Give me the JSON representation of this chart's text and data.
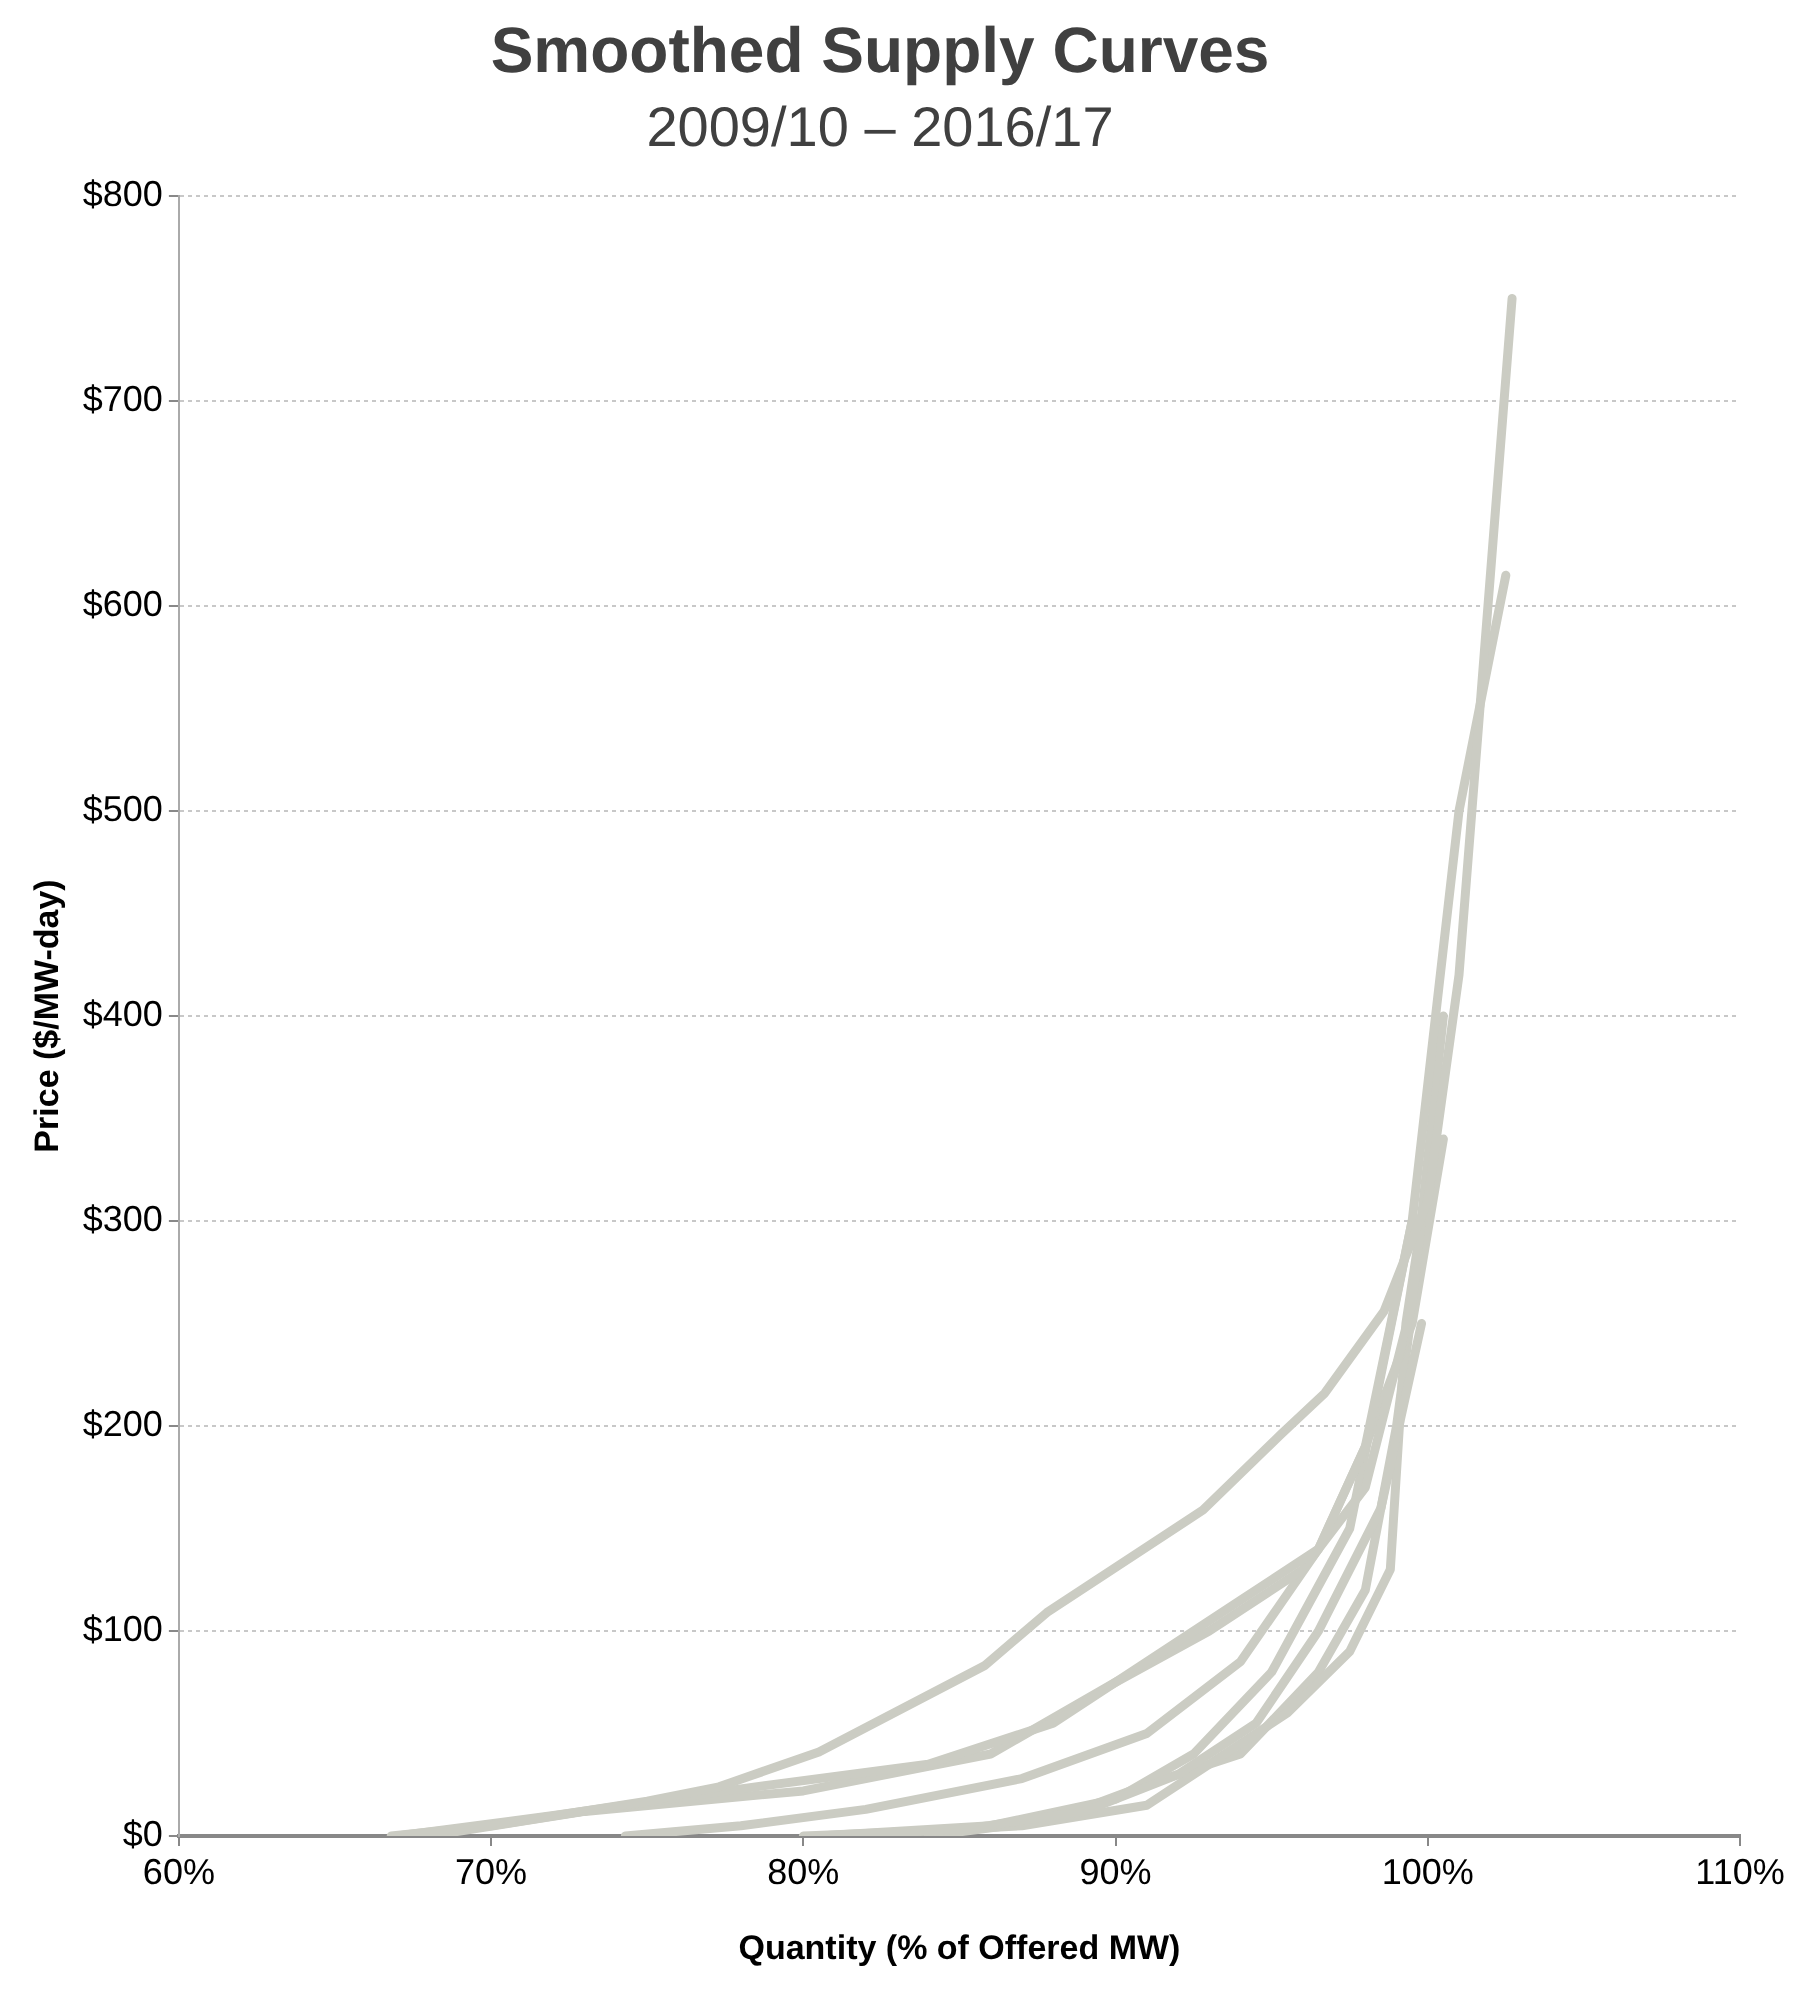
{
  "chart_data": {
    "type": "line",
    "title": "Smoothed Supply Curves",
    "subtitle": "2009/10 – 2016/17",
    "xlabel": "Quantity (% of Offered MW)",
    "ylabel": "Price ($/MW-day)",
    "xlim": [
      60,
      110
    ],
    "xticks": [
      {
        "value": 60,
        "label": "60%"
      },
      {
        "value": 70,
        "label": "70%"
      },
      {
        "value": 80,
        "label": "80%"
      },
      {
        "value": 90,
        "label": "90%"
      },
      {
        "value": 100,
        "label": "100%"
      },
      {
        "value": 110,
        "label": "110%"
      }
    ],
    "ylim": [
      0,
      800
    ],
    "yticks": [
      {
        "value": 0,
        "label": "$0"
      },
      {
        "value": 100,
        "label": "$100"
      },
      {
        "value": 200,
        "label": "$200"
      },
      {
        "value": 300,
        "label": "$300"
      },
      {
        "value": 400,
        "label": "$400"
      },
      {
        "value": 500,
        "label": "$500"
      },
      {
        "value": 600,
        "label": "$600"
      },
      {
        "value": 700,
        "label": "$700"
      },
      {
        "value": 800,
        "label": "$800"
      }
    ],
    "grid": "y",
    "marker": "none",
    "line_style": "solid",
    "series": [
      {
        "color": "#cbccc3",
        "x": [
          66.8,
          70,
          75,
          77.3,
          80.5,
          85.8,
          87.8,
          92.8,
          95.3,
          96.7,
          98.6,
          100,
          101,
          102.7
        ],
        "values": [
          0,
          5,
          17,
          24,
          41,
          83,
          109,
          159,
          196,
          216,
          256,
          310,
          420,
          750
        ]
      },
      {
        "color": "#cbccc3",
        "x": [
          67,
          72,
          78,
          84,
          88,
          91,
          94,
          96.5,
          98,
          99.5,
          101,
          102.5
        ],
        "values": [
          0,
          10,
          23,
          35,
          55,
          85,
          115,
          140,
          190,
          300,
          500,
          615
        ]
      },
      {
        "color": "#cbccc3",
        "x": [
          68,
          73,
          80,
          86,
          90,
          93,
          96,
          98,
          99.5,
          100.5
        ],
        "values": [
          0,
          12,
          22,
          40,
          75,
          100,
          130,
          170,
          260,
          400
        ]
      },
      {
        "color": "#cbccc3",
        "x": [
          74.3,
          78,
          82,
          87,
          91,
          94,
          96.5,
          98,
          99.5,
          100.5
        ],
        "values": [
          0,
          5,
          13,
          28,
          50,
          85,
          140,
          190,
          250,
          340
        ]
      },
      {
        "color": "#cbccc3",
        "x": [
          80,
          85,
          89,
          92,
          94.5,
          96.5,
          98.5,
          99.8
        ],
        "values": [
          0,
          3,
          12,
          30,
          55,
          100,
          160,
          250
        ]
      },
      {
        "color": "#cbccc3",
        "x": [
          80.5,
          86,
          90,
          92.5,
          95,
          97.5,
          99.5
        ],
        "values": [
          0,
          5,
          18,
          40,
          80,
          150,
          300
        ]
      },
      {
        "color": "#cbccc3",
        "x": [
          81,
          87,
          91,
          93.5,
          95.5,
          97.5,
          98.8,
          99.3,
          100
        ],
        "values": [
          0,
          5,
          15,
          40,
          60,
          90,
          130,
          250,
          320
        ]
      },
      {
        "color": "#cbccc3",
        "x": [
          84,
          88,
          91,
          94,
          96.5,
          98,
          99,
          99.7
        ],
        "values": [
          0,
          8,
          25,
          40,
          80,
          120,
          200,
          280
        ]
      }
    ]
  }
}
